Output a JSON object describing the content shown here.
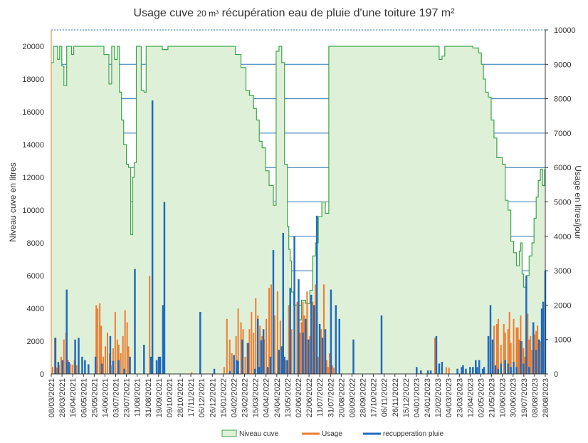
{
  "chart_data": {
    "type": "area",
    "title_part1": "Usage cuve ",
    "title_part2": "20 m³",
    "title_part3": " récupération eau de pluie d'une toiture 197 m²",
    "ylabel_left": "Niveau cuve  en litres",
    "ylabel_right": "Usage en litres/jour",
    "ylim_left": [
      0,
      21000
    ],
    "ylim_right": [
      0,
      10000
    ],
    "yticks_left": [
      "0",
      "2000",
      "4000",
      "6000",
      "8000",
      "10000",
      "12000",
      "14000",
      "16000",
      "18000",
      "20000"
    ],
    "yticks_right": [
      "0",
      "1000",
      "2000",
      "3000",
      "4000",
      "5000",
      "6000",
      "7000",
      "8000",
      "9000",
      "10000"
    ],
    "x_tick_labels": [
      "08/03/2021",
      "28/03/2021",
      "16/04/2021",
      "06/05/2021",
      "25/05/2021",
      "14/06/2021",
      "03/07/2021",
      "23/07/2021",
      "11/08/2021",
      "31/08/2021",
      "19/09/2021",
      "09/10/2021",
      "28/10/2021",
      "17/11/2021",
      "06/12/2021",
      "26/12/2021",
      "15/01/2022",
      "04/02/2022",
      "23/02/2022",
      "15/03/2022",
      "04/04/2022",
      "24/04/2022",
      "13/05/2022",
      "02/06/2022",
      "22/06/2022",
      "11/07/2022",
      "31/07/2022",
      "20/08/2022",
      "08/09/2022",
      "28/09/2022",
      "17/10/2022",
      "06/11/2022",
      "26/11/2022",
      "15/12/2022",
      "04/01/2023",
      "24/01/2023",
      "12/02/2023",
      "04/03/2023",
      "23/03/2023",
      "12/04/2023",
      "02/05/2023",
      "21/05/2023",
      "10/06/2023",
      "30/06/2023",
      "19/07/2023",
      "08/08/2023",
      "28/08/2023"
    ],
    "legend_position": "bottom",
    "colors": {
      "niveau_fill": "#dff0d8",
      "niveau_line": "#3aa648",
      "usage": "#ed7d31",
      "pluie": "#1f6bbf",
      "grid": "#2e75b6"
    },
    "series": [
      {
        "name": "Niveau cuve",
        "axis": "left",
        "x": [
          0,
          3,
          6,
          9,
          12,
          15,
          18,
          22,
          26,
          29,
          32,
          35,
          38,
          45,
          55,
          62,
          68,
          75,
          82,
          86,
          90,
          94,
          97,
          100,
          103,
          107,
          110,
          113,
          116,
          118,
          121,
          124,
          128,
          132,
          135,
          138,
          141,
          145,
          150,
          158,
          166,
          185,
          200,
          220,
          240,
          262,
          270,
          277,
          282,
          288,
          292,
          296,
          300,
          305,
          310,
          316,
          320,
          324,
          328,
          332,
          336,
          338,
          340,
          342,
          345,
          350,
          356,
          362,
          368,
          372,
          376,
          380,
          385,
          390,
          395,
          400,
          405,
          410,
          415,
          420,
          425,
          430,
          436,
          440,
          446,
          450,
          455,
          460,
          464,
          470,
          490,
          510,
          530,
          546,
          552,
          556,
          560,
          566,
          574,
          582,
          592,
          600,
          608,
          612,
          615,
          618,
          622,
          626,
          630,
          634,
          638,
          642,
          646,
          650,
          654,
          658,
          662,
          666,
          668,
          670,
          672,
          676,
          680,
          684,
          687,
          690,
          693,
          696,
          699,
          702
        ],
        "values": [
          19000,
          20000,
          20000,
          19200,
          20000,
          18800,
          17600,
          20000,
          20000,
          19500,
          20000,
          20000,
          20000,
          20000,
          20000,
          20000,
          20000,
          19500,
          17700,
          20000,
          19200,
          20000,
          17200,
          15500,
          14000,
          12800,
          12600,
          8500,
          12000,
          12900,
          20000,
          20000,
          17300,
          17200,
          20000,
          20000,
          20000,
          20000,
          20000,
          19800,
          20000,
          20000,
          20000,
          20000,
          20000,
          19500,
          18700,
          17300,
          17000,
          16200,
          15500,
          14200,
          13800,
          12400,
          11500,
          10300,
          19700,
          20000,
          19000,
          12800,
          9000,
          7600,
          6900,
          5000,
          4200,
          3300,
          4500,
          4300,
          5100,
          7200,
          8000,
          9600,
          10500,
          9800,
          20000,
          20000,
          20000,
          20000,
          20000,
          20000,
          20000,
          20000,
          20000,
          20000,
          20000,
          20000,
          20000,
          20000,
          20000,
          20000,
          20000,
          20000,
          20000,
          20000,
          19200,
          19400,
          20000,
          20000,
          20000,
          20000,
          20000,
          19900,
          19600,
          18900,
          18000,
          17200,
          16900,
          15500,
          14400,
          13200,
          13200,
          12800,
          10600,
          10000,
          8100,
          7400,
          6600,
          7500,
          8000,
          6100,
          5300,
          6000,
          7200,
          8000,
          9500,
          10800,
          11800,
          12500,
          11500,
          12500
        ]
      },
      {
        "name": "Usage",
        "axis": "right",
        "x": [
          2,
          5,
          8,
          11,
          14,
          18,
          21,
          24,
          27,
          30,
          33,
          36,
          64,
          66,
          69,
          71,
          74,
          77,
          80,
          83,
          85,
          88,
          91,
          94,
          96,
          99,
          102,
          105,
          108,
          110,
          140,
          200,
          246,
          250,
          254,
          257,
          260,
          263,
          266,
          270,
          273,
          276,
          279,
          282,
          285,
          288,
          291,
          294,
          297,
          300,
          303,
          306,
          310,
          313,
          318,
          322,
          326,
          330,
          334,
          338,
          342,
          346,
          350,
          352,
          354,
          356,
          358,
          360,
          362,
          364,
          366,
          368,
          370,
          372,
          374,
          376,
          378,
          380,
          382,
          384,
          386,
          388,
          390,
          392,
          394,
          396,
          398,
          400,
          402,
          546,
          552,
          556,
          562,
          566,
          630,
          634,
          636,
          640,
          644,
          646,
          650,
          652,
          654,
          658,
          662,
          664,
          666,
          668,
          670,
          672,
          674,
          676,
          678,
          680,
          682,
          684,
          686,
          688,
          690,
          692,
          694,
          696,
          698,
          700
        ],
        "values": [
          200,
          1050,
          180,
          260,
          500,
          1000,
          1200,
          400,
          300,
          260,
          400,
          250,
          2000,
          1900,
          2050,
          1400,
          500,
          800,
          1200,
          600,
          250,
          750,
          1800,
          1000,
          850,
          600,
          1100,
          1850,
          1500,
          800,
          2850,
          50,
          200,
          1600,
          1000,
          600,
          350,
          1100,
          1900,
          1500,
          1300,
          500,
          900,
          1300,
          1800,
          1200,
          2200,
          1700,
          1400,
          1100,
          1000,
          1600,
          2500,
          2600,
          1700,
          2400,
          1550,
          700,
          400,
          2000,
          1300,
          3000,
          2100,
          1400,
          1200,
          1500,
          2100,
          1700,
          1000,
          2400,
          500,
          1100,
          1500,
          2100,
          1000,
          2600,
          200,
          500,
          500,
          1300,
          200,
          2600,
          800,
          400,
          200,
          600,
          250,
          250,
          180,
          1050,
          150,
          250,
          200,
          180,
          1400,
          1450,
          1600,
          850,
          1450,
          1200,
          1300,
          1800,
          900,
          1600,
          1350,
          1350,
          1000,
          1700,
          950,
          750,
          500,
          1400,
          1750,
          1000,
          1100,
          700,
          500,
          1150,
          1250,
          1400,
          1000,
          950,
          800,
          1300
        ]
      },
      {
        "name": "recupperation pluie",
        "axis": "right",
        "x": [
          6,
          10,
          16,
          22,
          25,
          34,
          39,
          44,
          48,
          53,
          63,
          72,
          84,
          88,
          96,
          104,
          112,
          119,
          132,
          142,
          144,
          150,
          153,
          155,
          159,
          161,
          212,
          232,
          254,
          260,
          264,
          266,
          272,
          280,
          290,
          294,
          296,
          299,
          302,
          308,
          312,
          316,
          324,
          328,
          330,
          332,
          336,
          340,
          346,
          352,
          358,
          362,
          366,
          370,
          374,
          378,
          382,
          386,
          390,
          398,
          405,
          410,
          430,
          470,
          520,
          526,
          536,
          540,
          548,
          552,
          556,
          578,
          584,
          586,
          590,
          596,
          600,
          604,
          606,
          609,
          614,
          616,
          622,
          625,
          628,
          632,
          636,
          640,
          646,
          650,
          654,
          658,
          662,
          668,
          672,
          676,
          680,
          686,
          690,
          694,
          698,
          700,
          703
        ],
        "values": [
          1050,
          350,
          400,
          2450,
          350,
          1000,
          1050,
          500,
          400,
          280,
          500,
          300,
          1100,
          380,
          400,
          150,
          500,
          3050,
          850,
          500,
          7950,
          400,
          500,
          500,
          2000,
          5000,
          1800,
          150,
          80,
          550,
          400,
          380,
          1000,
          900,
          150,
          1600,
          200,
          980,
          1300,
          200,
          500,
          3600,
          700,
          800,
          4100,
          500,
          400,
          2500,
          4000,
          2750,
          1200,
          1600,
          1000,
          2300,
          2000,
          4600,
          1450,
          1050,
          1300,
          2450,
          2000,
          1600,
          1000,
          1700,
          200,
          100,
          100,
          100,
          1100,
          300,
          350,
          150,
          200,
          250,
          150,
          200,
          200,
          400,
          200,
          400,
          150,
          200,
          1100,
          2000,
          1000,
          250,
          150,
          300,
          400,
          300,
          200,
          350,
          200,
          950,
          300,
          2850,
          200,
          1500,
          700,
          1000,
          1900,
          2100,
          3000
        ]
      }
    ]
  }
}
